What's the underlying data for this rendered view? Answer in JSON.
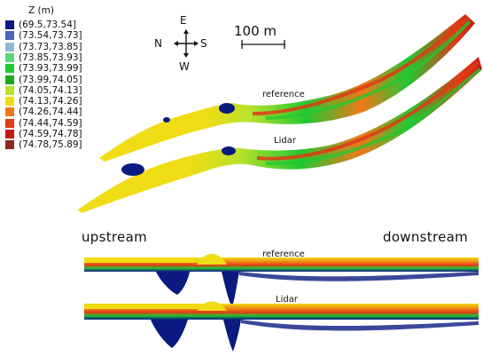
{
  "legend": {
    "title": "Z (m)",
    "items": [
      {
        "label": "(69.5,73.54]",
        "color": "#0a1a80"
      },
      {
        "label": "(73.54,73.73]",
        "color": "#4a63b8"
      },
      {
        "label": "(73.73,73.85]",
        "color": "#8fb7d9"
      },
      {
        "label": "(73.85,73.93]",
        "color": "#58d878"
      },
      {
        "label": "(73.93,73.99]",
        "color": "#22c832"
      },
      {
        "label": "(73.99,74.05]",
        "color": "#1aa81c"
      },
      {
        "label": "(74.05,74.13]",
        "color": "#b8e22a"
      },
      {
        "label": "(74.13,74.26]",
        "color": "#f0dc14"
      },
      {
        "label": "(74.26,74.44]",
        "color": "#f07818"
      },
      {
        "label": "(74.44,74.59]",
        "color": "#e03a14"
      },
      {
        "label": "(74.59,74.78]",
        "color": "#c41a14"
      },
      {
        "label": "(74.78,75.89]",
        "color": "#8a2a20"
      }
    ]
  },
  "compass": {
    "north": "N",
    "south": "S",
    "east": "E",
    "west": "W"
  },
  "scalebar": {
    "label": "100 m"
  },
  "plan_view": {
    "reference_label": "reference",
    "lidar_label": "Lidar"
  },
  "profile_view": {
    "upstream_label": "upstream",
    "downstream_label": "downstream",
    "reference_label": "reference",
    "lidar_label": "Lidar"
  }
}
